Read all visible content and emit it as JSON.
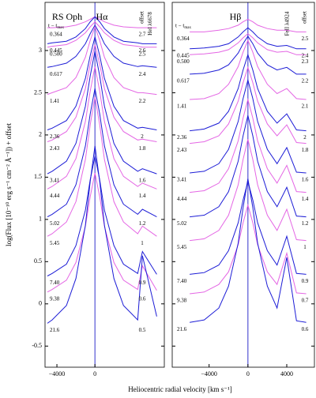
{
  "chart_data": [
    {
      "type": "line",
      "label": "RS Oph",
      "title": "Hα",
      "line_note": "HeI λ6678",
      "epoch_header": "t − t",
      "epoch_header_sub": "max",
      "offset_header": "offset",
      "xlabel": "Heliocentric radial velocity [km s⁻¹]",
      "ylabel": "log(Flux [10⁻¹⁰ erg s⁻¹ cm⁻² Å⁻¹]) + offset",
      "xlim": [
        -5250,
        7300
      ],
      "ylim": [
        -0.75,
        3.57
      ],
      "xticks": [
        {
          "value": -4000,
          "label": "−4000"
        },
        0
      ],
      "yticks": [
        -0.5,
        0,
        0.5,
        1,
        1.5,
        2,
        2.5,
        3
      ],
      "x": [
        -5000,
        -4500,
        -3000,
        -2000,
        -1000,
        -500,
        0,
        500,
        1000,
        2000,
        3000,
        4500,
        5000,
        6500
      ],
      "series": [
        {
          "name": "0.364",
          "offset": 2.7,
          "color": "#e466e4",
          "values": [
            3.27,
            3.27,
            3.28,
            3.3,
            3.34,
            3.37,
            3.4,
            3.37,
            3.34,
            3.3,
            3.28,
            3.27,
            3.27,
            3.27
          ]
        },
        {
          "name": "0.445",
          "offset": 2.6,
          "color": "#1c1cd6",
          "values": [
            3.08,
            3.09,
            3.11,
            3.16,
            3.26,
            3.34,
            3.4,
            3.34,
            3.26,
            3.16,
            3.11,
            3.09,
            3.08,
            3.08
          ]
        },
        {
          "name": "0.500",
          "offset": 2.5,
          "color": "#e466e4",
          "values": [
            3.04,
            3.05,
            3.07,
            3.12,
            3.21,
            3.28,
            3.34,
            3.28,
            3.21,
            3.12,
            3.07,
            3.05,
            3.04,
            3.04
          ]
        },
        {
          "name": "0.617",
          "offset": 2.4,
          "color": "#1c1cd6",
          "values": [
            2.8,
            2.81,
            2.85,
            2.93,
            3.08,
            3.2,
            3.3,
            3.2,
            3.08,
            2.93,
            2.85,
            2.81,
            2.82,
            2.8
          ]
        },
        {
          "name": "1.41",
          "offset": 2.2,
          "color": "#e466e4",
          "values": [
            2.48,
            2.5,
            2.56,
            2.68,
            2.92,
            3.12,
            3.28,
            3.12,
            2.92,
            2.68,
            2.56,
            2.5,
            2.5,
            2.48
          ]
        },
        {
          "name": "2.36",
          "offset": 2.0,
          "color": "#1c1cd6",
          "values": [
            2.06,
            2.08,
            2.17,
            2.34,
            2.67,
            2.94,
            3.16,
            2.94,
            2.67,
            2.34,
            2.17,
            2.08,
            2.09,
            2.06
          ]
        },
        {
          "name": "2.43",
          "offset": 1.8,
          "color": "#e466e4",
          "values": [
            1.92,
            1.94,
            2.04,
            2.21,
            2.55,
            2.84,
            3.07,
            2.84,
            2.55,
            2.21,
            2.04,
            1.94,
            1.95,
            1.92
          ]
        },
        {
          "name": "3.41",
          "offset": 1.6,
          "color": "#1c1cd6",
          "values": [
            1.54,
            1.57,
            1.69,
            1.9,
            2.34,
            2.7,
            2.99,
            2.7,
            2.34,
            1.9,
            1.69,
            1.57,
            1.6,
            1.54
          ]
        },
        {
          "name": "4.44",
          "offset": 1.4,
          "color": "#e466e4",
          "values": [
            1.36,
            1.39,
            1.51,
            1.72,
            2.16,
            2.52,
            2.81,
            2.52,
            2.16,
            1.72,
            1.51,
            1.39,
            1.43,
            1.36
          ]
        },
        {
          "name": "5.02",
          "offset": 1.2,
          "color": "#1c1cd6",
          "values": [
            1.03,
            1.06,
            1.18,
            1.41,
            1.87,
            2.25,
            2.55,
            2.25,
            1.87,
            1.41,
            1.18,
            1.06,
            1.12,
            1.03
          ]
        },
        {
          "name": "5.45",
          "offset": 1.0,
          "color": "#e466e4",
          "values": [
            0.8,
            0.83,
            0.97,
            1.21,
            1.71,
            2.12,
            2.45,
            2.12,
            1.71,
            1.21,
            0.97,
            0.83,
            0.92,
            0.8
          ]
        },
        {
          "name": "7.40",
          "offset": 0.9,
          "color": "#1c1cd6",
          "values": [
            0.33,
            0.36,
            0.47,
            0.69,
            1.11,
            1.47,
            1.75,
            1.47,
            1.11,
            0.69,
            0.47,
            0.36,
            0.62,
            0.35
          ]
        },
        {
          "name": "9.38",
          "offset": 0.6,
          "color": "#e466e4",
          "values": [
            0.14,
            0.17,
            0.28,
            0.49,
            0.92,
            1.27,
            1.55,
            1.27,
            0.92,
            0.49,
            0.28,
            0.17,
            0.45,
            0.16
          ]
        },
        {
          "name": "21.6",
          "offset": 0.5,
          "color": "#1c1cd6",
          "values": [
            -0.23,
            -0.19,
            -0.02,
            0.3,
            0.93,
            1.45,
            1.87,
            1.45,
            0.93,
            0.3,
            -0.02,
            -0.19,
            0.57,
            -0.15
          ]
        }
      ]
    },
    {
      "type": "line",
      "title": "Hβ",
      "line_note": "FeII λ4924",
      "epoch_header": "t − t",
      "epoch_header_sub": "max",
      "offset_header": "offset",
      "xlim": [
        -7800,
        6850
      ],
      "ylim": [
        -0.75,
        3.57
      ],
      "xticks": [
        {
          "value": -4000,
          "label": "−4000"
        },
        0,
        4000
      ],
      "yticks": [
        -0.5,
        0,
        0.5,
        1,
        1.5,
        2,
        2.5,
        3
      ],
      "x": [
        -6000,
        -4500,
        -3000,
        -2000,
        -1000,
        -500,
        0,
        500,
        1000,
        2000,
        3000,
        4000,
        5000,
        6000
      ],
      "series": [
        {
          "name": "0.364",
          "offset": 2.5,
          "color": "#e466e4",
          "values": [
            3.22,
            3.22,
            3.24,
            3.26,
            3.3,
            3.34,
            3.37,
            3.34,
            3.3,
            3.26,
            3.24,
            3.24,
            3.22,
            3.22
          ]
        },
        {
          "name": "0.445",
          "offset": 2.4,
          "color": "#1c1cd6",
          "values": [
            3.02,
            3.03,
            3.05,
            3.08,
            3.16,
            3.22,
            3.27,
            3.22,
            3.16,
            3.08,
            3.05,
            3.06,
            3.02,
            3.02
          ]
        },
        {
          "name": "0.500",
          "offset": 2.3,
          "color": "#e466e4",
          "values": [
            2.95,
            2.96,
            2.98,
            3.01,
            3.09,
            3.15,
            3.2,
            3.15,
            3.09,
            3.01,
            2.98,
            2.99,
            2.95,
            2.95
          ]
        },
        {
          "name": "0.617",
          "offset": 2.2,
          "color": "#1c1cd6",
          "values": [
            2.72,
            2.73,
            2.77,
            2.83,
            2.97,
            3.08,
            3.17,
            3.08,
            2.97,
            2.83,
            2.77,
            2.8,
            2.72,
            2.72
          ]
        },
        {
          "name": "1.41",
          "offset": 2.1,
          "color": "#e466e4",
          "values": [
            2.42,
            2.43,
            2.49,
            2.6,
            2.81,
            2.98,
            3.12,
            2.98,
            2.81,
            2.6,
            2.49,
            2.55,
            2.43,
            2.42
          ]
        },
        {
          "name": "2.36",
          "offset": 2.0,
          "color": "#1c1cd6",
          "values": [
            2.05,
            2.07,
            2.14,
            2.28,
            2.55,
            2.77,
            2.95,
            2.77,
            2.55,
            2.28,
            2.14,
            2.25,
            2.06,
            2.05
          ]
        },
        {
          "name": "2.43",
          "offset": 1.8,
          "color": "#e466e4",
          "values": [
            1.9,
            1.92,
            1.99,
            2.13,
            2.4,
            2.62,
            2.8,
            2.62,
            2.4,
            2.13,
            1.99,
            2.12,
            1.91,
            1.9
          ]
        },
        {
          "name": "3.41",
          "offset": 1.6,
          "color": "#1c1cd6",
          "values": [
            1.55,
            1.57,
            1.66,
            1.83,
            2.16,
            2.43,
            2.65,
            2.43,
            2.16,
            1.83,
            1.66,
            1.85,
            1.56,
            1.55
          ]
        },
        {
          "name": "4.44",
          "offset": 1.4,
          "color": "#e466e4",
          "values": [
            1.32,
            1.34,
            1.43,
            1.6,
            1.93,
            2.2,
            2.42,
            2.2,
            1.93,
            1.6,
            1.43,
            1.64,
            1.33,
            1.32
          ]
        },
        {
          "name": "5.02",
          "offset": 1.2,
          "color": "#1c1cd6",
          "values": [
            1.03,
            1.05,
            1.15,
            1.33,
            1.69,
            1.99,
            2.23,
            1.99,
            1.69,
            1.33,
            1.15,
            1.38,
            1.04,
            1.03
          ]
        },
        {
          "name": "5.45",
          "offset": 1.0,
          "color": "#e466e4",
          "values": [
            0.75,
            0.77,
            0.87,
            1.05,
            1.41,
            1.71,
            1.95,
            1.71,
            1.41,
            1.05,
            0.87,
            1.12,
            0.76,
            0.75
          ]
        },
        {
          "name": "7.40",
          "offset": 0.9,
          "color": "#1c1cd6",
          "values": [
            0.35,
            0.37,
            0.46,
            0.63,
            0.96,
            1.23,
            1.45,
            1.23,
            0.96,
            0.63,
            0.46,
            0.8,
            0.36,
            0.35
          ]
        },
        {
          "name": "9.38",
          "offset": 0.7,
          "color": "#e466e4",
          "values": [
            0.12,
            0.14,
            0.23,
            0.38,
            0.7,
            0.96,
            1.17,
            0.96,
            0.7,
            0.38,
            0.23,
            0.6,
            0.13,
            0.12
          ]
        },
        {
          "name": "21.6",
          "offset": 0.6,
          "color": "#1c1cd6",
          "values": [
            -0.22,
            -0.19,
            -0.05,
            0.21,
            0.72,
            1.14,
            1.48,
            1.14,
            0.72,
            0.21,
            -0.05,
            0.55,
            -0.2,
            -0.22
          ]
        }
      ]
    }
  ]
}
